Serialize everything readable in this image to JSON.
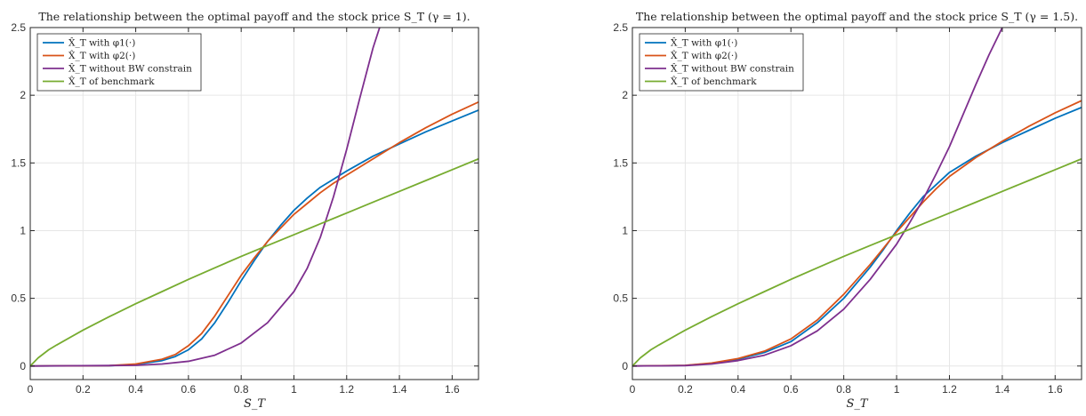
{
  "chart_data": [
    {
      "type": "line",
      "title": "The relationship between the optimal payoff and the stock price S_T (γ = 1).",
      "xlabel": "S_T",
      "ylabel": "",
      "xlim": [
        0,
        1.7
      ],
      "ylim": [
        -0.1,
        2.5
      ],
      "xticks": [
        "0",
        "0.2",
        "0.4",
        "0.6",
        "0.8",
        "1",
        "1.2",
        "1.4",
        "1.6"
      ],
      "yticks": [
        "0",
        "0.5",
        "1",
        "1.5",
        "2",
        "2.5"
      ],
      "grid": true,
      "legend_position": "top-left",
      "series": [
        {
          "name": "X̂_T with φ1(·)",
          "color": "#0072BD",
          "points": [
            [
              0,
              0
            ],
            [
              0.3,
              0.002
            ],
            [
              0.4,
              0.012
            ],
            [
              0.5,
              0.04
            ],
            [
              0.55,
              0.07
            ],
            [
              0.6,
              0.12
            ],
            [
              0.65,
              0.2
            ],
            [
              0.7,
              0.32
            ],
            [
              0.75,
              0.47
            ],
            [
              0.8,
              0.63
            ],
            [
              0.85,
              0.78
            ],
            [
              0.9,
              0.92
            ],
            [
              0.95,
              1.04
            ],
            [
              1.0,
              1.15
            ],
            [
              1.05,
              1.24
            ],
            [
              1.1,
              1.32
            ],
            [
              1.15,
              1.38
            ],
            [
              1.2,
              1.44
            ],
            [
              1.3,
              1.55
            ],
            [
              1.4,
              1.64
            ],
            [
              1.5,
              1.73
            ],
            [
              1.6,
              1.81
            ],
            [
              1.7,
              1.89
            ]
          ]
        },
        {
          "name": "X̂_T with φ2(·)",
          "color": "#D95319",
          "points": [
            [
              0,
              0
            ],
            [
              0.3,
              0.003
            ],
            [
              0.4,
              0.015
            ],
            [
              0.5,
              0.05
            ],
            [
              0.55,
              0.085
            ],
            [
              0.6,
              0.15
            ],
            [
              0.65,
              0.24
            ],
            [
              0.7,
              0.37
            ],
            [
              0.75,
              0.52
            ],
            [
              0.8,
              0.67
            ],
            [
              0.85,
              0.8
            ],
            [
              0.9,
              0.92
            ],
            [
              0.95,
              1.02
            ],
            [
              1.0,
              1.12
            ],
            [
              1.05,
              1.2
            ],
            [
              1.1,
              1.28
            ],
            [
              1.15,
              1.35
            ],
            [
              1.2,
              1.41
            ],
            [
              1.3,
              1.53
            ],
            [
              1.4,
              1.65
            ],
            [
              1.5,
              1.76
            ],
            [
              1.6,
              1.86
            ],
            [
              1.7,
              1.95
            ]
          ]
        },
        {
          "name": "X̂_T without BW constrain",
          "color": "#7E2F8E",
          "points": [
            [
              0,
              0
            ],
            [
              0.4,
              0.005
            ],
            [
              0.5,
              0.015
            ],
            [
              0.6,
              0.035
            ],
            [
              0.7,
              0.08
            ],
            [
              0.8,
              0.17
            ],
            [
              0.9,
              0.32
            ],
            [
              1.0,
              0.55
            ],
            [
              1.05,
              0.72
            ],
            [
              1.1,
              0.95
            ],
            [
              1.15,
              1.25
            ],
            [
              1.2,
              1.6
            ],
            [
              1.25,
              1.98
            ],
            [
              1.3,
              2.35
            ],
            [
              1.325,
              2.5
            ]
          ]
        },
        {
          "name": "X̂_T of benchmark",
          "color": "#77AC30",
          "points": [
            [
              0,
              0
            ],
            [
              0.03,
              0.06
            ],
            [
              0.07,
              0.12
            ],
            [
              0.1,
              0.155
            ],
            [
              0.2,
              0.265
            ],
            [
              0.3,
              0.365
            ],
            [
              0.4,
              0.46
            ],
            [
              0.5,
              0.55
            ],
            [
              0.6,
              0.64
            ],
            [
              0.7,
              0.725
            ],
            [
              0.8,
              0.81
            ],
            [
              0.9,
              0.89
            ],
            [
              1.0,
              0.97
            ],
            [
              1.1,
              1.05
            ],
            [
              1.2,
              1.13
            ],
            [
              1.3,
              1.21
            ],
            [
              1.4,
              1.29
            ],
            [
              1.5,
              1.37
            ],
            [
              1.6,
              1.45
            ],
            [
              1.7,
              1.53
            ]
          ]
        }
      ]
    },
    {
      "type": "line",
      "title": "The relationship between the optimal payoff and the stock price S_T (γ = 1.5).",
      "xlabel": "S_T",
      "ylabel": "",
      "xlim": [
        0,
        1.7
      ],
      "ylim": [
        -0.1,
        2.5
      ],
      "xticks": [
        "0",
        "0.2",
        "0.4",
        "0.6",
        "0.8",
        "1",
        "1.2",
        "1.4",
        "1.6"
      ],
      "yticks": [
        "0",
        "0.5",
        "1",
        "1.5",
        "2",
        "2.5"
      ],
      "grid": true,
      "legend_position": "top-left",
      "series": [
        {
          "name": "X̂_T with φ1(·)",
          "color": "#0072BD",
          "points": [
            [
              0,
              0
            ],
            [
              0.2,
              0.004
            ],
            [
              0.3,
              0.02
            ],
            [
              0.4,
              0.05
            ],
            [
              0.5,
              0.1
            ],
            [
              0.6,
              0.18
            ],
            [
              0.7,
              0.32
            ],
            [
              0.8,
              0.5
            ],
            [
              0.9,
              0.73
            ],
            [
              0.95,
              0.86
            ],
            [
              1.0,
              1.0
            ],
            [
              1.05,
              1.13
            ],
            [
              1.1,
              1.25
            ],
            [
              1.15,
              1.34
            ],
            [
              1.2,
              1.43
            ],
            [
              1.3,
              1.55
            ],
            [
              1.4,
              1.65
            ],
            [
              1.5,
              1.74
            ],
            [
              1.6,
              1.83
            ],
            [
              1.7,
              1.91
            ]
          ]
        },
        {
          "name": "X̂_T with φ2(·)",
          "color": "#D95319",
          "points": [
            [
              0,
              0
            ],
            [
              0.2,
              0.005
            ],
            [
              0.3,
              0.022
            ],
            [
              0.4,
              0.055
            ],
            [
              0.5,
              0.11
            ],
            [
              0.6,
              0.2
            ],
            [
              0.7,
              0.34
            ],
            [
              0.8,
              0.53
            ],
            [
              0.9,
              0.75
            ],
            [
              0.95,
              0.87
            ],
            [
              1.0,
              0.99
            ],
            [
              1.05,
              1.1
            ],
            [
              1.1,
              1.21
            ],
            [
              1.15,
              1.31
            ],
            [
              1.2,
              1.4
            ],
            [
              1.3,
              1.54
            ],
            [
              1.4,
              1.66
            ],
            [
              1.5,
              1.77
            ],
            [
              1.6,
              1.87
            ],
            [
              1.7,
              1.96
            ]
          ]
        },
        {
          "name": "X̂_T without BW constrain",
          "color": "#7E2F8E",
          "points": [
            [
              0,
              0
            ],
            [
              0.2,
              0.003
            ],
            [
              0.3,
              0.015
            ],
            [
              0.4,
              0.04
            ],
            [
              0.5,
              0.08
            ],
            [
              0.6,
              0.15
            ],
            [
              0.7,
              0.26
            ],
            [
              0.8,
              0.42
            ],
            [
              0.9,
              0.64
            ],
            [
              1.0,
              0.9
            ],
            [
              1.05,
              1.06
            ],
            [
              1.1,
              1.23
            ],
            [
              1.15,
              1.42
            ],
            [
              1.2,
              1.62
            ],
            [
              1.25,
              1.85
            ],
            [
              1.3,
              2.08
            ],
            [
              1.35,
              2.3
            ],
            [
              1.4,
              2.5
            ]
          ]
        },
        {
          "name": "X̂_T of benchmark",
          "color": "#77AC30",
          "points": [
            [
              0,
              0
            ],
            [
              0.03,
              0.06
            ],
            [
              0.07,
              0.12
            ],
            [
              0.1,
              0.155
            ],
            [
              0.2,
              0.265
            ],
            [
              0.3,
              0.365
            ],
            [
              0.4,
              0.46
            ],
            [
              0.5,
              0.55
            ],
            [
              0.6,
              0.64
            ],
            [
              0.7,
              0.725
            ],
            [
              0.8,
              0.81
            ],
            [
              0.9,
              0.89
            ],
            [
              1.0,
              0.97
            ],
            [
              1.1,
              1.05
            ],
            [
              1.2,
              1.13
            ],
            [
              1.3,
              1.21
            ],
            [
              1.4,
              1.29
            ],
            [
              1.5,
              1.37
            ],
            [
              1.6,
              1.45
            ],
            [
              1.7,
              1.53
            ]
          ]
        }
      ]
    }
  ]
}
